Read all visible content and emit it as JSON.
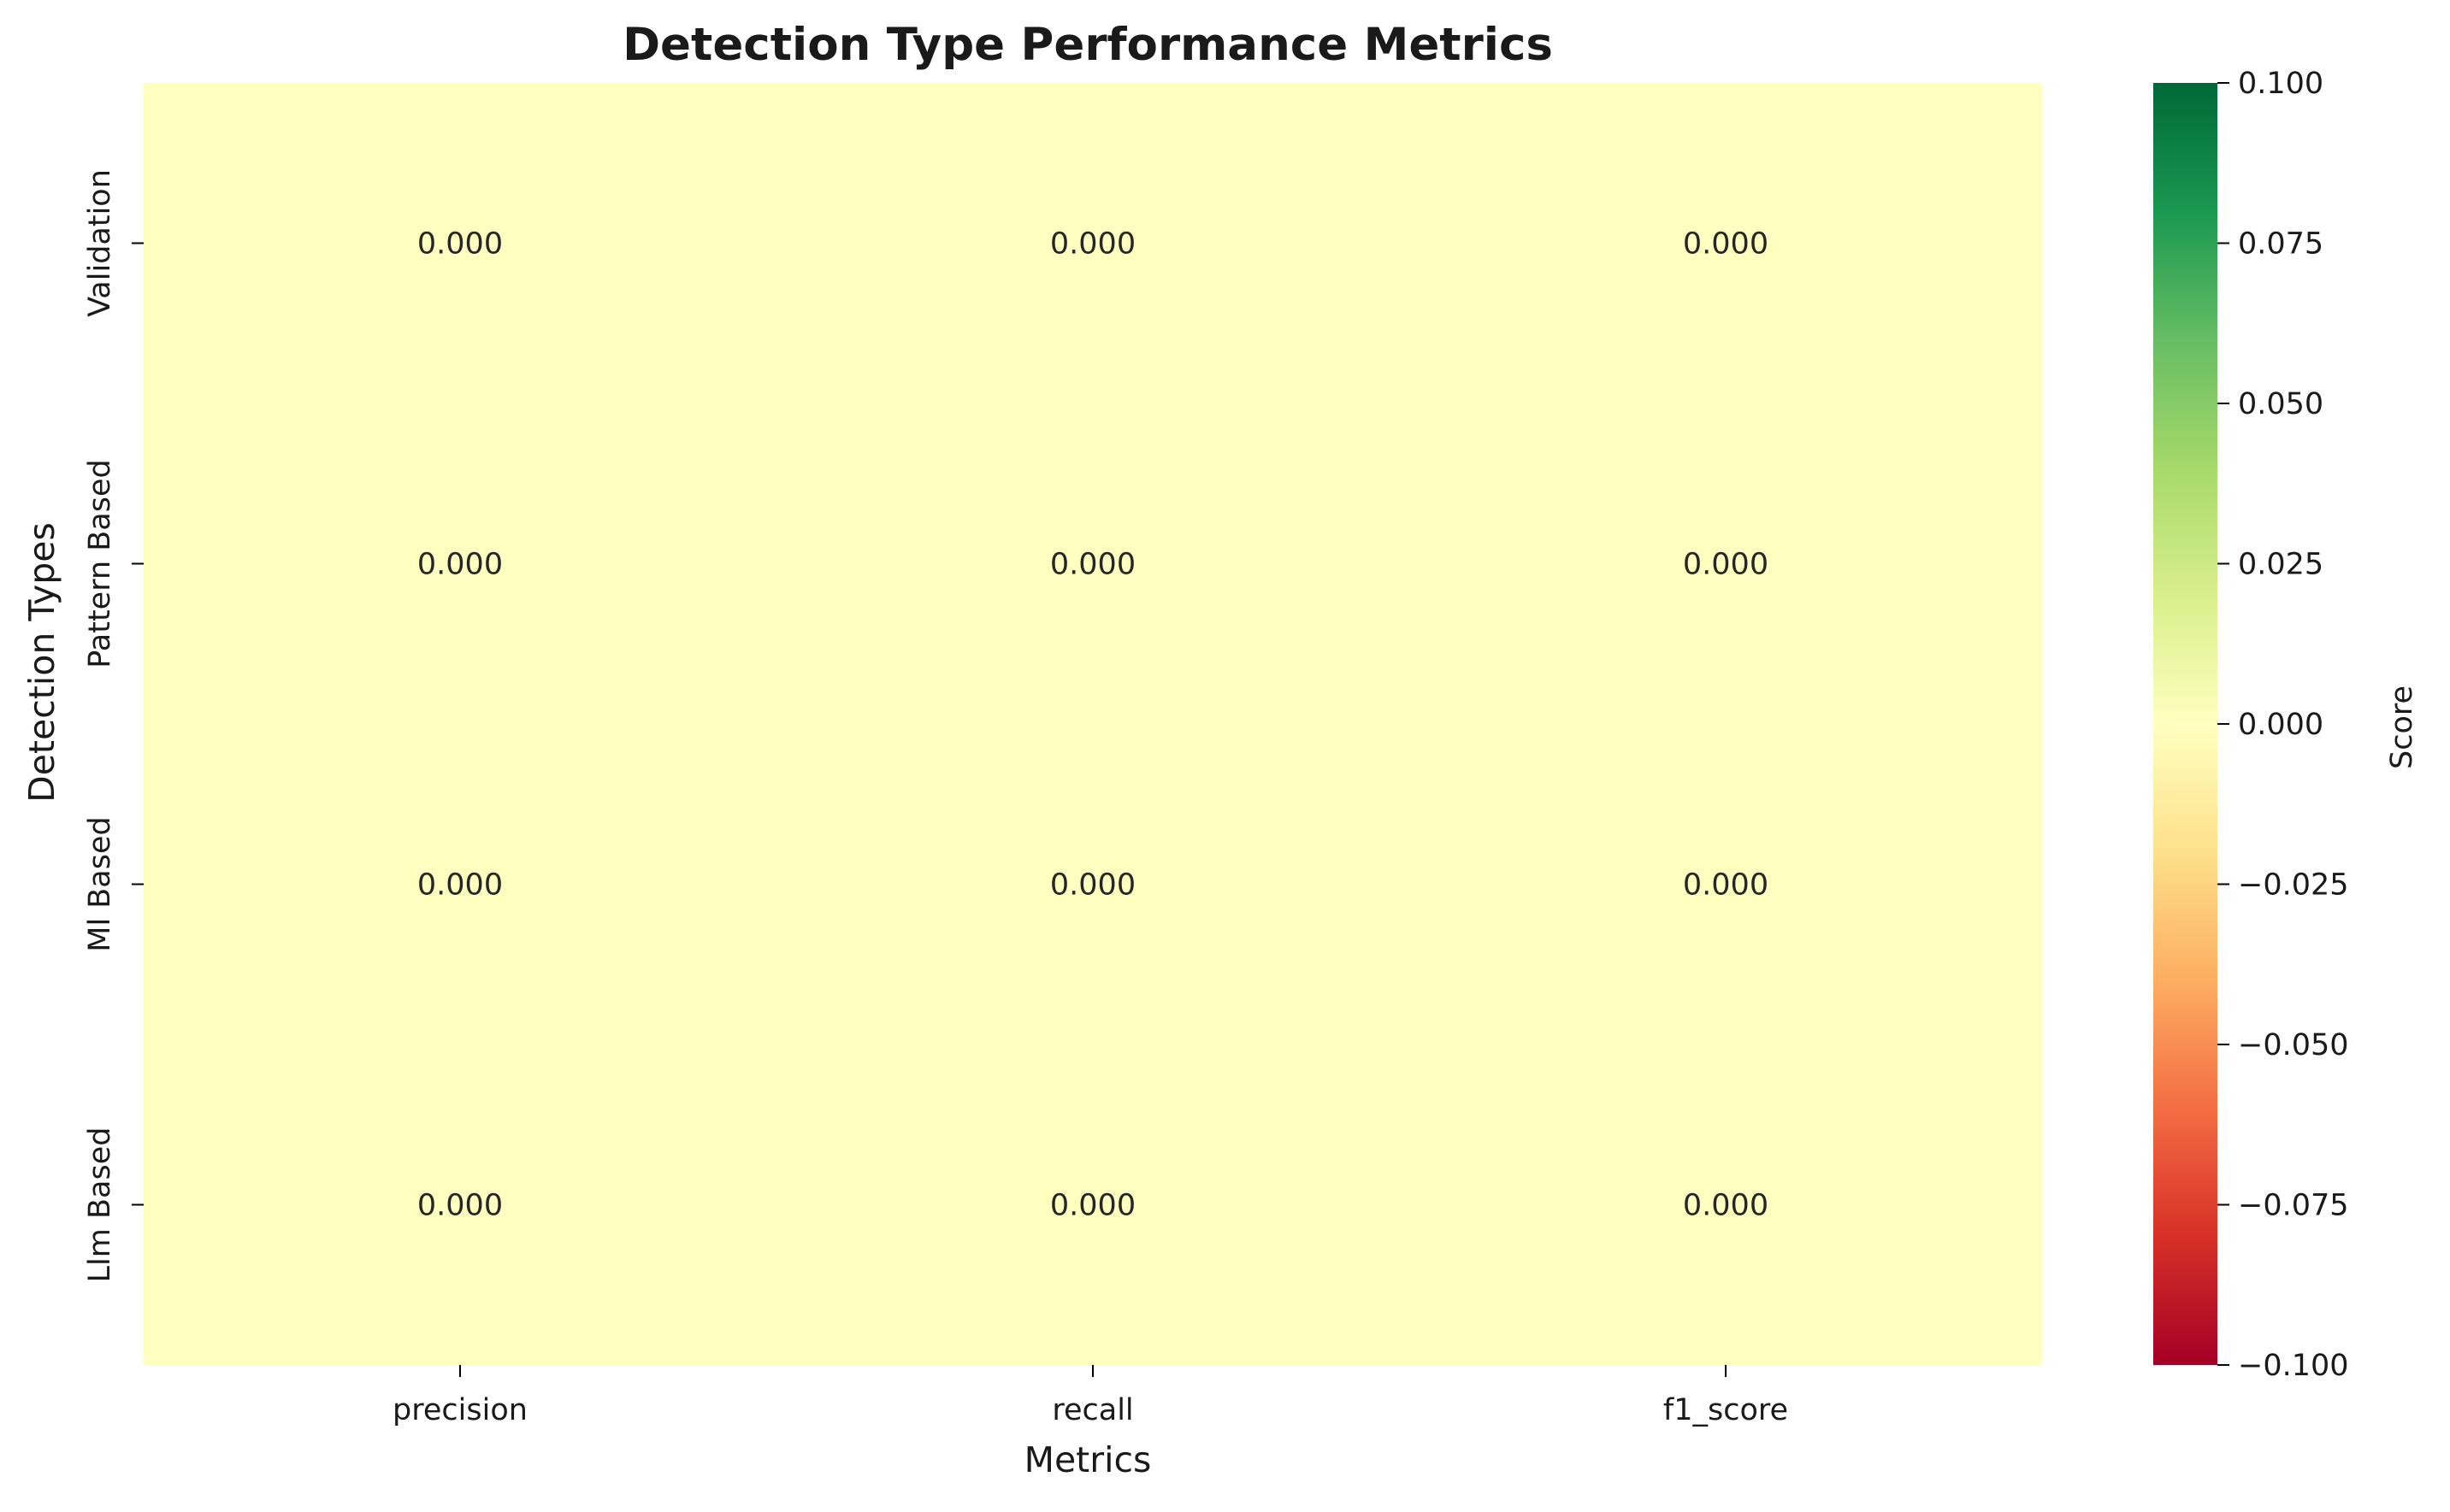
{
  "chart_data": {
    "type": "heatmap",
    "title": "Detection Type Performance Metrics",
    "xlabel": "Metrics",
    "ylabel": "Detection Types",
    "x_categories": [
      "precision",
      "recall",
      "f1_score"
    ],
    "y_categories": [
      "Validation",
      "Pattern Based",
      "Ml Based",
      "Llm Based"
    ],
    "values": [
      [
        0.0,
        0.0,
        0.0
      ],
      [
        0.0,
        0.0,
        0.0
      ],
      [
        0.0,
        0.0,
        0.0
      ],
      [
        0.0,
        0.0,
        0.0
      ]
    ],
    "cell_labels": [
      [
        "0.000",
        "0.000",
        "0.000"
      ],
      [
        "0.000",
        "0.000",
        "0.000"
      ],
      [
        "0.000",
        "0.000",
        "0.000"
      ],
      [
        "0.000",
        "0.000",
        "0.000"
      ]
    ],
    "colormap": "RdYlGn",
    "vmin": -0.1,
    "vmax": 0.1,
    "colorbar": {
      "label": "Score",
      "ticks": [
        -0.1,
        -0.075,
        -0.05,
        -0.025,
        0.0,
        0.025,
        0.05,
        0.075,
        0.1
      ],
      "tick_labels": [
        "−0.100",
        "−0.075",
        "−0.050",
        "−0.025",
        "0.000",
        "0.025",
        "0.050",
        "0.075",
        "0.100"
      ],
      "colors": [
        "#a50026",
        "#d73027",
        "#f46d43",
        "#fdae61",
        "#fee08b",
        "#ffffbf",
        "#d9ef8b",
        "#a6d96a",
        "#66bd63",
        "#1a9850",
        "#006837"
      ]
    },
    "grid": false,
    "legend": "colorbar-right"
  }
}
